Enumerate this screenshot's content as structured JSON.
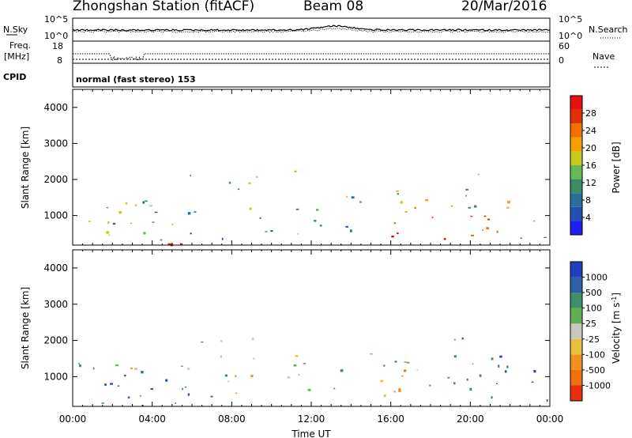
{
  "header": {
    "station": "Zhongshan Station (fitACF)",
    "beam": "Beam 08",
    "date": "20/Mar/2016"
  },
  "summary": {
    "left_top_label": "N.Sky",
    "left_top_ticks": [
      "10^5",
      "10^0"
    ],
    "right_top_ticks": [
      "10^5",
      "10^0"
    ],
    "right_top_label": "N.Search",
    "freq_label_1": "Freq.",
    "freq_label_2": "[MHz]",
    "freq_ticks": [
      "18",
      "8"
    ],
    "nave_ticks": [
      "60",
      "0"
    ],
    "nave_label": "Nave",
    "cpid_label": "CPID",
    "cpid_value": "normal (fast stereo) 153"
  },
  "chart_data": [
    {
      "type": "heatmap",
      "name": "power",
      "ylabel": "Slant Range [km]",
      "ylim": [
        180,
        4500
      ],
      "yticks": [
        1000,
        2000,
        3000,
        4000
      ],
      "xlim": [
        0,
        24
      ],
      "colorbar": {
        "label": "Power [dB]",
        "levels": [
          "4",
          "8",
          "12",
          "16",
          "20",
          "24",
          "28"
        ],
        "colors": [
          "#1e1ef5",
          "#244fb4",
          "#2a6f99",
          "#3d8c66",
          "#66b858",
          "#c8c81e",
          "#f5a000",
          "#f07000",
          "#e03000",
          "#e81010"
        ]
      }
    },
    {
      "type": "heatmap",
      "name": "velocity",
      "ylabel": "Slant Range [km]",
      "ylim": [
        180,
        4500
      ],
      "yticks": [
        1000,
        2000,
        3000,
        4000
      ],
      "xlim": [
        0,
        24
      ],
      "xticks": [
        "00:00",
        "04:00",
        "08:00",
        "12:00",
        "16:00",
        "20:00",
        "00:00"
      ],
      "xlabel": "Time UT",
      "colorbar": {
        "label": "Velocity [m s",
        "label_sup": "-1",
        "label_end": "]",
        "levels": [
          "1000",
          "500",
          "100",
          "25",
          "-25",
          "-100",
          "-500",
          "-1000"
        ],
        "colors": [
          "#2040c0",
          "#2e60a8",
          "#3f8f6a",
          "#5fb050",
          "#c8c8c0",
          "#e8c040",
          "#f09020",
          "#f07010",
          "#e83010"
        ]
      }
    }
  ]
}
